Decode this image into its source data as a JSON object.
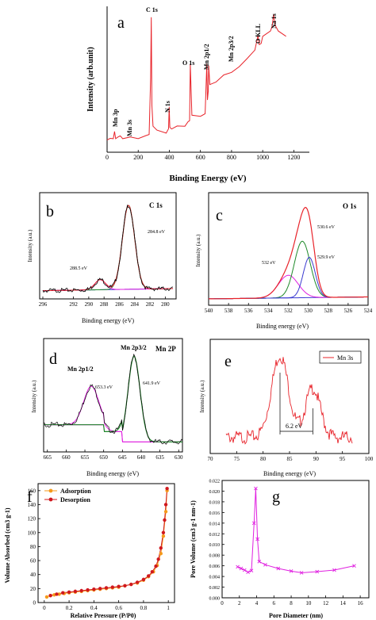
{
  "colors": {
    "red": "#e8232a",
    "black": "#000000",
    "green": "#1f8a2a",
    "blue": "#3a3ad0",
    "magenta": "#e020e0",
    "orange": "#f59a1b",
    "darkred": "#d0181e"
  },
  "chart_data": [
    {
      "panel": "a",
      "type": "line",
      "xlabel": "Binding Energy (eV)",
      "ylabel": "Intensity (arb.unit)",
      "xlim": [
        0,
        1300
      ],
      "xticks": [
        0,
        200,
        400,
        600,
        800,
        1000,
        1200
      ],
      "ylim": [
        0,
        100
      ],
      "annotations": [
        "Mn 3p",
        "Mn 3s",
        "C 1s",
        "N 1s",
        "O 1s",
        "Mn 2p1/2",
        "Mn 2p3/2",
        "O KLL",
        "Na 1s"
      ],
      "series": [
        {
          "x": [
            0,
            20,
            40,
            48,
            55,
            70,
            84,
            92,
            100,
            150,
            200,
            250,
            270,
            280,
            284,
            288,
            295,
            320,
            380,
            395,
            399,
            403,
            415,
            450,
            500,
            520,
            530,
            535,
            545,
            600,
            630,
            641,
            645,
            650,
            653,
            660,
            700,
            750,
            800,
            850,
            900,
            950,
            970,
            978,
            990,
            1000,
            1050,
            1060,
            1071,
            1080,
            1100,
            1150
          ],
          "values": [
            6,
            6,
            7,
            11,
            7,
            7,
            9,
            7,
            7,
            7,
            7,
            8,
            10,
            50,
            95,
            30,
            16,
            12,
            11,
            13,
            30,
            14,
            14,
            15,
            16,
            18,
            20,
            60,
            24,
            22,
            25,
            60,
            35,
            40,
            60,
            45,
            48,
            52,
            55,
            58,
            65,
            70,
            82,
            74,
            76,
            80,
            85,
            87,
            97,
            88,
            85,
            80
          ]
        }
      ]
    },
    {
      "panel": "b",
      "type": "line",
      "title": "C 1s",
      "xlabel": "Binding energy (eV)",
      "ylabel": "Intensity (a.u.)",
      "xlim": [
        296,
        279
      ],
      "xticks": [
        296,
        292,
        290,
        288,
        286,
        284,
        282,
        280
      ],
      "xtick_labels": [
        "296",
        "292",
        "290",
        "288",
        "286",
        "284",
        "282",
        "280"
      ],
      "annotations": [
        "288.5 eV",
        "284.8 eV"
      ],
      "peaks": [
        {
          "name": "",
          "center": 284.8,
          "height": 100,
          "width": 0.8
        },
        {
          "name": "",
          "center": 288.5,
          "height": 12,
          "width": 0.7
        }
      ]
    },
    {
      "panel": "c",
      "type": "line",
      "title": "O 1s",
      "xlabel": "Binding energy (eV)",
      "ylabel": "Intensity (a.u.)",
      "xlim": [
        540,
        524
      ],
      "xticks": [
        540,
        538,
        536,
        534,
        532,
        530,
        528,
        526,
        524
      ],
      "annotations": [
        "532 eV",
        "530.6 eV",
        "529.9 eV"
      ],
      "peaks": [
        {
          "name": "",
          "center": 532.0,
          "height": 28,
          "width": 1.0
        },
        {
          "name": "",
          "center": 530.6,
          "height": 70,
          "width": 0.8
        },
        {
          "name": "",
          "center": 529.9,
          "height": 50,
          "width": 0.6
        }
      ]
    },
    {
      "panel": "d",
      "type": "line",
      "title": "Mn 2P",
      "xlabel": "Binding energy (eV)",
      "ylabel": "Intensity (a.u.)",
      "xlim": [
        666,
        629
      ],
      "xticks": [
        665,
        660,
        655,
        650,
        645,
        640,
        635,
        630
      ],
      "annotations": [
        "Mn 2p1/2",
        "Mn 2p3/2",
        "653.3 eV",
        "641.9 eV"
      ],
      "peaks": [
        {
          "name": "",
          "center": 653.3,
          "height": 45,
          "width": 2.0
        },
        {
          "name": "",
          "center": 641.9,
          "height": 100,
          "width": 1.6
        }
      ]
    },
    {
      "panel": "e",
      "type": "line",
      "xlabel": "Binding energy (eV)",
      "xlim": [
        70,
        100
      ],
      "xticks": [
        70,
        75,
        80,
        85,
        90,
        95,
        100
      ],
      "legend": "Mn 3s",
      "annotations": [
        "6.2 eV"
      ],
      "peaks": [
        {
          "name": "",
          "center": 83.2,
          "height": 100,
          "width": 1.6
        },
        {
          "name": "",
          "center": 89.4,
          "height": 60,
          "width": 1.4
        }
      ]
    },
    {
      "panel": "f",
      "type": "line",
      "xlabel": "Relative Pressure (P/P0)",
      "ylabel": "Volume Absorbed (cm3 g-1)",
      "xlim": [
        -0.05,
        1.05
      ],
      "xticks": [
        0.0,
        0.2,
        0.4,
        0.6,
        0.8,
        1.0
      ],
      "ylim": [
        0,
        170
      ],
      "yticks": [
        0,
        20,
        40,
        60,
        80,
        100,
        120,
        140,
        160
      ],
      "legend_position": "top-left",
      "series": [
        {
          "name": "Adsorption",
          "x": [
            0.02,
            0.05,
            0.08,
            0.12,
            0.16,
            0.2,
            0.25,
            0.3,
            0.35,
            0.4,
            0.45,
            0.5,
            0.55,
            0.6,
            0.65,
            0.7,
            0.75,
            0.8,
            0.84,
            0.88,
            0.91,
            0.94,
            0.96,
            0.98,
            0.99
          ],
          "values": [
            8,
            10,
            11,
            12,
            13,
            14,
            15,
            16,
            17,
            18,
            19,
            20,
            21,
            22,
            24,
            26,
            28,
            32,
            37,
            44,
            53,
            70,
            95,
            130,
            160
          ]
        },
        {
          "name": "Desorption",
          "x": [
            0.99,
            0.98,
            0.97,
            0.96,
            0.94,
            0.92,
            0.9,
            0.87,
            0.84,
            0.8,
            0.75,
            0.7,
            0.65,
            0.6,
            0.55,
            0.5,
            0.45,
            0.4,
            0.35,
            0.3,
            0.25,
            0.2,
            0.15,
            0.1,
            0.05
          ],
          "values": [
            163,
            140,
            118,
            100,
            78,
            62,
            52,
            44,
            38,
            33,
            29,
            26,
            24,
            23,
            22,
            21,
            20,
            19,
            18,
            17,
            16,
            15,
            14,
            12,
            10
          ]
        }
      ]
    },
    {
      "panel": "g",
      "type": "line",
      "xlabel": "Pore Diameter (nm)",
      "ylabel": "Pore Volume (cm3 g-1 nm-1)",
      "xlim": [
        0,
        17
      ],
      "xticks": [
        0,
        2,
        4,
        6,
        8,
        10,
        12,
        14,
        16
      ],
      "ylim": [
        0.0,
        0.022
      ],
      "yticks": [
        0.0,
        0.002,
        0.004,
        0.006,
        0.008,
        0.01,
        0.012,
        0.014,
        0.016,
        0.018,
        0.02,
        0.022
      ],
      "ytick_labels": [
        "0.000",
        "0.002",
        "0.004",
        "0.006",
        "0.008",
        "0.010",
        "0.012",
        "0.014",
        "0.016",
        "0.018",
        "0.020",
        "0.022"
      ],
      "series": [
        {
          "x": [
            1.8,
            2.2,
            2.6,
            3.0,
            3.4,
            3.7,
            3.9,
            4.1,
            4.3,
            5.0,
            6.5,
            8.0,
            9.2,
            11.0,
            13.0,
            15.3
          ],
          "values": [
            0.0058,
            0.0055,
            0.0052,
            0.0048,
            0.0051,
            0.014,
            0.0205,
            0.011,
            0.0068,
            0.0062,
            0.0055,
            0.005,
            0.0047,
            0.0049,
            0.0052,
            0.006
          ]
        }
      ]
    }
  ],
  "labels": {
    "a": "a",
    "b": "b",
    "c": "c",
    "d": "d",
    "e": "e",
    "f": "f",
    "g": "g",
    "a_xlabel": "Binding Energy (eV)",
    "a_ylabel": "Intensity (arb.unit)",
    "a_mn3p": "Mn 3p",
    "a_mn3s": "Mn 3s",
    "a_c1s": "C 1s",
    "a_n1s": "N 1s",
    "a_o1s": "O 1s",
    "a_mn2p12": "Mn 2p1/2",
    "a_mn2p32": "Mn 2p3/2",
    "a_okll": "O KLL",
    "a_na1s": "Na 1s",
    "b_title": "C 1s",
    "b_xlabel": "Binding energy (eV)",
    "b_ylabel": "Intensity (a.u.)",
    "b_p1": "288.5 eV",
    "b_p2": "284.8 eV",
    "c_title": "O 1s",
    "c_xlabel": "Binding energy (eV)",
    "c_ylabel": "Intensity (a.u.)",
    "c_p1": "532 eV",
    "c_p2": "530.6 eV",
    "c_p3": "529.9 eV",
    "d_title": "Mn 2P",
    "d_xlabel": "Binding energy (eV)",
    "d_ylabel": "Intensity (a.u.)",
    "d_mn2p12": "Mn 2p1/2",
    "d_mn2p32": "Mn 2p3/2",
    "d_p1": "653.3 eV",
    "d_p2": "641.9 eV",
    "e_xlabel": "Binding energy (eV)",
    "e_ylabel": "Intensity (a.u.)",
    "e_legend": "Mn 3s",
    "e_split": "6.2 eV",
    "f_xlabel": "Relative Pressure (P/P0)",
    "f_ylabel": "Volume Absorbed (cm3 g-1)",
    "f_leg1": "Adsorption",
    "f_leg2": "Desorption",
    "g_xlabel": "Pore Diameter (nm)",
    "g_ylabel": "Pore Volume (cm3 g-1 nm-1)"
  }
}
